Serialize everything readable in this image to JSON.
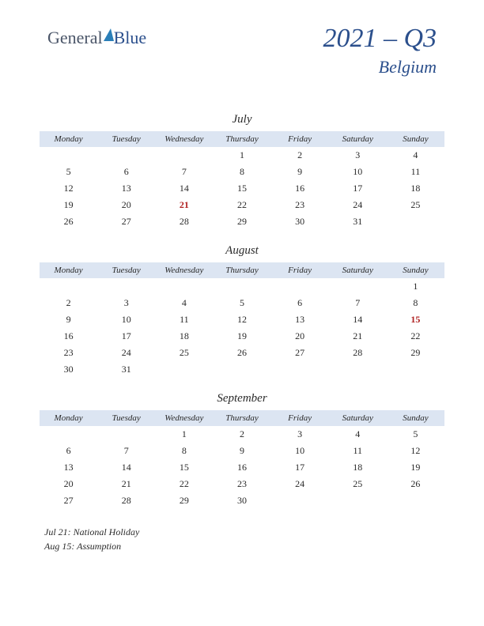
{
  "logo": {
    "part1": "General",
    "part2": "Blue"
  },
  "header": {
    "title": "2021 – Q3",
    "subtitle": "Belgium"
  },
  "colors": {
    "header_bg": "#dce5f2",
    "text": "#2a2a2a",
    "brand": "#2b4f8c",
    "holiday": "#b02222"
  },
  "day_headers": [
    "Monday",
    "Tuesday",
    "Wednesday",
    "Thursday",
    "Friday",
    "Saturday",
    "Sunday"
  ],
  "months": [
    {
      "name": "July",
      "weeks": [
        [
          "",
          "",
          "",
          "1",
          "2",
          "3",
          "4"
        ],
        [
          "5",
          "6",
          "7",
          "8",
          "9",
          "10",
          "11"
        ],
        [
          "12",
          "13",
          "14",
          "15",
          "16",
          "17",
          "18"
        ],
        [
          "19",
          "20",
          "21",
          "22",
          "23",
          "24",
          "25"
        ],
        [
          "26",
          "27",
          "28",
          "29",
          "30",
          "31",
          ""
        ]
      ],
      "holidays": [
        "21"
      ]
    },
    {
      "name": "August",
      "weeks": [
        [
          "",
          "",
          "",
          "",
          "",
          "",
          "1"
        ],
        [
          "2",
          "3",
          "4",
          "5",
          "6",
          "7",
          "8"
        ],
        [
          "9",
          "10",
          "11",
          "12",
          "13",
          "14",
          "15"
        ],
        [
          "16",
          "17",
          "18",
          "19",
          "20",
          "21",
          "22"
        ],
        [
          "23",
          "24",
          "25",
          "26",
          "27",
          "28",
          "29"
        ],
        [
          "30",
          "31",
          "",
          "",
          "",
          "",
          ""
        ]
      ],
      "holidays": [
        "15"
      ]
    },
    {
      "name": "September",
      "weeks": [
        [
          "",
          "",
          "1",
          "2",
          "3",
          "4",
          "5"
        ],
        [
          "6",
          "7",
          "8",
          "9",
          "10",
          "11",
          "12"
        ],
        [
          "13",
          "14",
          "15",
          "16",
          "17",
          "18",
          "19"
        ],
        [
          "20",
          "21",
          "22",
          "23",
          "24",
          "25",
          "26"
        ],
        [
          "27",
          "28",
          "29",
          "30",
          "",
          "",
          ""
        ]
      ],
      "holidays": []
    }
  ],
  "holiday_notes": [
    "Jul 21: National Holiday",
    "Aug 15: Assumption"
  ]
}
